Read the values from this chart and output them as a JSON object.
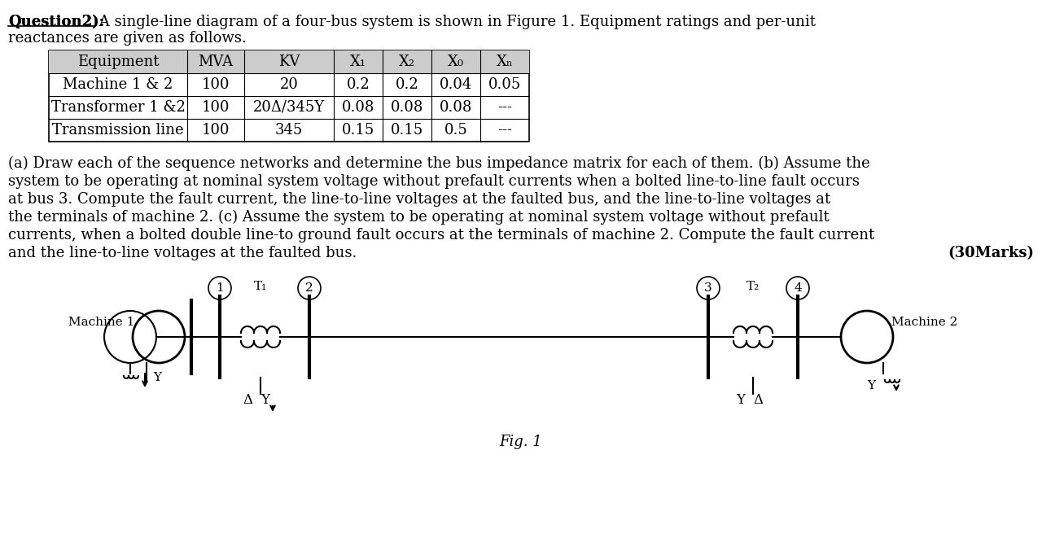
{
  "title_bold": "Question2):",
  "title_rest": " A single-line diagram of a four-bus system is shown in Figure 1. Equipment ratings and per-unit\nreactances are given as follows.",
  "table_headers": [
    "Equipment",
    "MVA",
    "KV",
    "X₁",
    "X₂",
    "X₀",
    "Xₙ"
  ],
  "table_rows": [
    [
      "Machine 1 & 2",
      "100",
      "20",
      "0.2",
      "0.2",
      "0.04",
      "0.05"
    ],
    [
      "Transformer 1 &2",
      "100",
      "20Δ/345Y",
      "0.08",
      "0.08",
      "0.08",
      "---"
    ],
    [
      "Transmission line",
      "100",
      "345",
      "0.15",
      "0.15",
      "0.5",
      "---"
    ]
  ],
  "body_text": "(a) Draw each of the sequence networks and determine the bus impedance matrix for each of them. (b) Assume the system to be operating at nominal system voltage without prefault currents when a bolted line-to-line fault occurs at bus 3. Compute the fault current, the line-to-line voltages at the faulted bus, and the line-to-line voltages at the terminals of machine 2. (c) Assume the system to be operating at nominal system voltage without prefault currents, when a bolted double line-to ground fault occurs at the terminals of machine 2. Compute the fault current and the line-to-line voltages at the faulted bus.",
  "marks_text": "(30Marks)",
  "fig_label": "Fig. 1",
  "background_color": "#ffffff",
  "text_color": "#000000",
  "table_bg": "#d3d3d3",
  "diagram_elements": {
    "machine1_label": "Machine 1",
    "machine2_label": "Machine 2",
    "bus_labels": [
      "1",
      "2",
      "3",
      "4"
    ],
    "transformer_labels": [
      "T₁",
      "T₂"
    ],
    "ground_left": "Δ Y",
    "ground_right": "Y Δ"
  }
}
